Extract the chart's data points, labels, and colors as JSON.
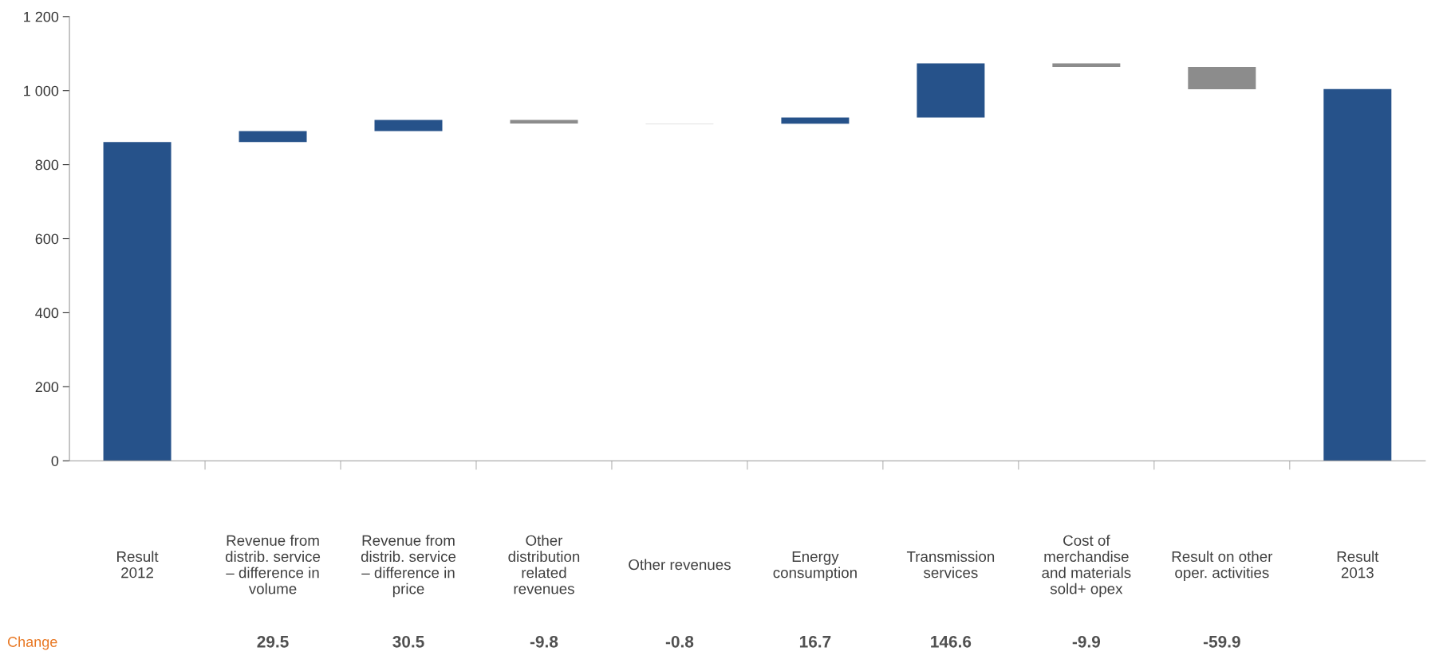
{
  "chart_data": {
    "type": "bar",
    "categories": [
      "Result\n2012",
      "Revenue from\ndistrib. service\n– difference in\nvolume",
      "Revenue from\ndistrib. service\n– difference in\nprice",
      "Other\ndistribution\nrelated\nrevenues",
      "Other revenues",
      "Energy\nconsumption",
      "Transmission\nservices",
      "Cost of\nmerchandise\nand materials\nsold+ opex",
      "Result on other\noper. activities",
      "Result\n2013"
    ],
    "values": [
      861,
      29.5,
      30.5,
      -9.8,
      -0.8,
      16.7,
      146.6,
      -9.9,
      -59.9,
      1004
    ],
    "base": [
      0,
      861,
      890.5,
      921,
      911.2,
      910.4,
      927.1,
      1073.7,
      1063.8,
      0
    ],
    "colors": [
      "#26528a",
      "#26528a",
      "#26528a",
      "#8c8c8c",
      "#8c8c8c",
      "#26528a",
      "#26528a",
      "#8c8c8c",
      "#8c8c8c",
      "#26528a"
    ],
    "value_labels": [
      null,
      "29.5",
      "30.5",
      "-9.8",
      "-0.8",
      "16.7",
      "146.6",
      "-9.9",
      "-59.9",
      null
    ],
    "annotations": [
      "Change"
    ],
    "ylim": [
      0,
      1200
    ],
    "yticks": [
      0,
      200,
      400,
      600,
      800,
      {
        "value": 1000,
        "label": "1 000"
      },
      {
        "value": 1200,
        "label": "1 200"
      }
    ],
    "grid": false,
    "legend": false
  }
}
